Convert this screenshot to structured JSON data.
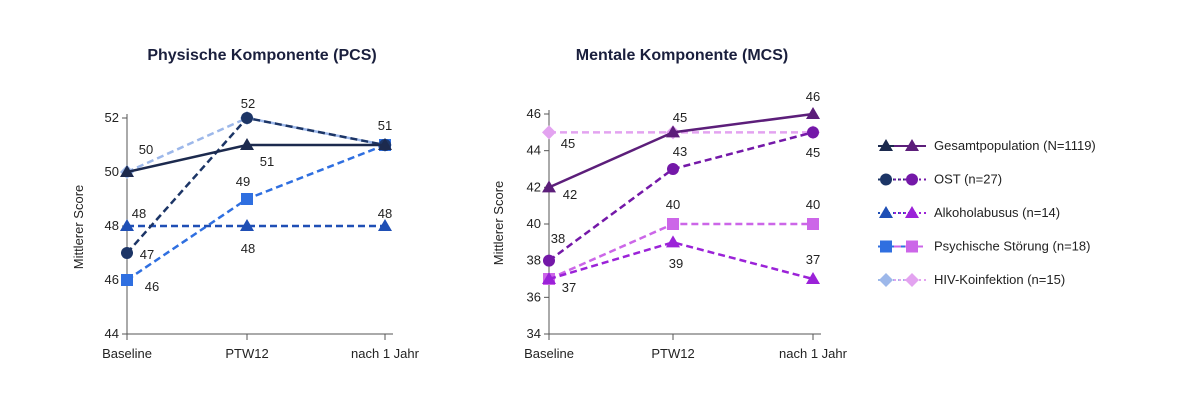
{
  "chart_data": [
    {
      "type": "line",
      "title": "Physische Komponente (PCS)",
      "xlabel": "",
      "ylabel": "Mittlerer Score",
      "categories": [
        "Baseline",
        "PTW12",
        "nach 1 Jahr"
      ],
      "ylim": [
        44,
        52
      ],
      "yticks": [
        44,
        46,
        48,
        50,
        52
      ],
      "grid": false,
      "series": [
        {
          "name": "Gesamtpopulation (N=1119)",
          "values": [
            50,
            51,
            51
          ],
          "color": "#1c2a4e",
          "marker": "triangle",
          "dash": "solid"
        },
        {
          "name": "OST (n=27)",
          "values": [
            47,
            52,
            51
          ],
          "color": "#1c3566",
          "marker": "circle",
          "dash": "dashed"
        },
        {
          "name": "Alkoholabusus (n=14)",
          "values": [
            48,
            48,
            48
          ],
          "color": "#1f4fb5",
          "marker": "triangle",
          "dash": "dashed"
        },
        {
          "name": "Psychische Störung (n=18)",
          "values": [
            46,
            49,
            51
          ],
          "color": "#2f6fe0",
          "marker": "square",
          "dash": "dashed"
        },
        {
          "name": "HIV-Koinfektion (n=15)",
          "values": [
            50,
            52,
            51
          ],
          "color": "#9db8ea",
          "marker": "diamond",
          "dash": "dashed"
        }
      ],
      "annotations": [
        {
          "text": "50",
          "at": "Baseline",
          "value": 50
        },
        {
          "text": "47",
          "at": "Baseline",
          "value": 47
        },
        {
          "text": "48",
          "at": "Baseline",
          "value": 48
        },
        {
          "text": "46",
          "at": "Baseline",
          "value": 46
        },
        {
          "text": "52",
          "at": "PTW12",
          "value": 52
        },
        {
          "text": "51",
          "at": "PTW12",
          "value": 51
        },
        {
          "text": "49",
          "at": "PTW12",
          "value": 49
        },
        {
          "text": "48",
          "at": "PTW12",
          "value": 48
        },
        {
          "text": "51",
          "at": "nach 1 Jahr",
          "value": 51
        },
        {
          "text": "48",
          "at": "nach 1 Jahr",
          "value": 48
        }
      ]
    },
    {
      "type": "line",
      "title": "Mentale Komponente (MCS)",
      "xlabel": "",
      "ylabel": "Mittlerer Score",
      "categories": [
        "Baseline",
        "PTW12",
        "nach 1 Jahr"
      ],
      "ylim": [
        34,
        46
      ],
      "yticks": [
        34,
        36,
        38,
        40,
        42,
        44,
        46
      ],
      "grid": false,
      "series": [
        {
          "name": "Gesamtpopulation (N=1119)",
          "values": [
            42,
            45,
            46
          ],
          "color": "#5c1e7a",
          "marker": "triangle",
          "dash": "solid"
        },
        {
          "name": "OST (n=27)",
          "values": [
            38,
            43,
            45
          ],
          "color": "#7418a8",
          "marker": "circle",
          "dash": "dashed"
        },
        {
          "name": "Alkoholabusus (n=14)",
          "values": [
            37,
            39,
            37
          ],
          "color": "#9b22d8",
          "marker": "triangle",
          "dash": "dashed"
        },
        {
          "name": "Psychische Störung (n=18)",
          "values": [
            37,
            40,
            40
          ],
          "color": "#cc66e8",
          "marker": "square",
          "dash": "dashed"
        },
        {
          "name": "HIV-Koinfektion (n=15)",
          "values": [
            45,
            45,
            45
          ],
          "color": "#e3a3f0",
          "marker": "diamond",
          "dash": "dashed"
        }
      ],
      "annotations": [
        {
          "text": "45",
          "at": "Baseline",
          "value": 45
        },
        {
          "text": "42",
          "at": "Baseline",
          "value": 42
        },
        {
          "text": "38",
          "at": "Baseline",
          "value": 38
        },
        {
          "text": "37",
          "at": "Baseline",
          "value": 37
        },
        {
          "text": "45",
          "at": "PTW12",
          "value": 45
        },
        {
          "text": "43",
          "at": "PTW12",
          "value": 43
        },
        {
          "text": "40",
          "at": "PTW12",
          "value": 40
        },
        {
          "text": "39",
          "at": "PTW12",
          "value": 39
        },
        {
          "text": "46",
          "at": "nach 1 Jahr",
          "value": 46
        },
        {
          "text": "45",
          "at": "nach 1 Jahr",
          "value": 45
        },
        {
          "text": "40",
          "at": "nach 1 Jahr",
          "value": 40
        },
        {
          "text": "37",
          "at": "nach 1 Jahr",
          "value": 37
        }
      ]
    }
  ],
  "legend": {
    "placement": "right",
    "items": [
      {
        "label": "Gesamtpopulation (N=1119)",
        "marker": "triangle",
        "dash": "solid",
        "colors": [
          "#1c2a4e",
          "#5c1e7a"
        ]
      },
      {
        "label": "OST (n=27)",
        "marker": "circle",
        "dash": "dotted",
        "colors": [
          "#1c3566",
          "#7418a8"
        ]
      },
      {
        "label": "Alkoholabusus (n=14)",
        "marker": "triangle",
        "dash": "dotted",
        "colors": [
          "#1f4fb5",
          "#9b22d8"
        ]
      },
      {
        "label": "Psychische Störung (n=18)",
        "marker": "square",
        "dash": "dashed",
        "colors": [
          "#2f6fe0",
          "#cc66e8"
        ]
      },
      {
        "label": "HIV-Koinfektion (n=15)",
        "marker": "diamond",
        "dash": "dotted",
        "colors": [
          "#9db8ea",
          "#e3a3f0"
        ]
      }
    ]
  }
}
